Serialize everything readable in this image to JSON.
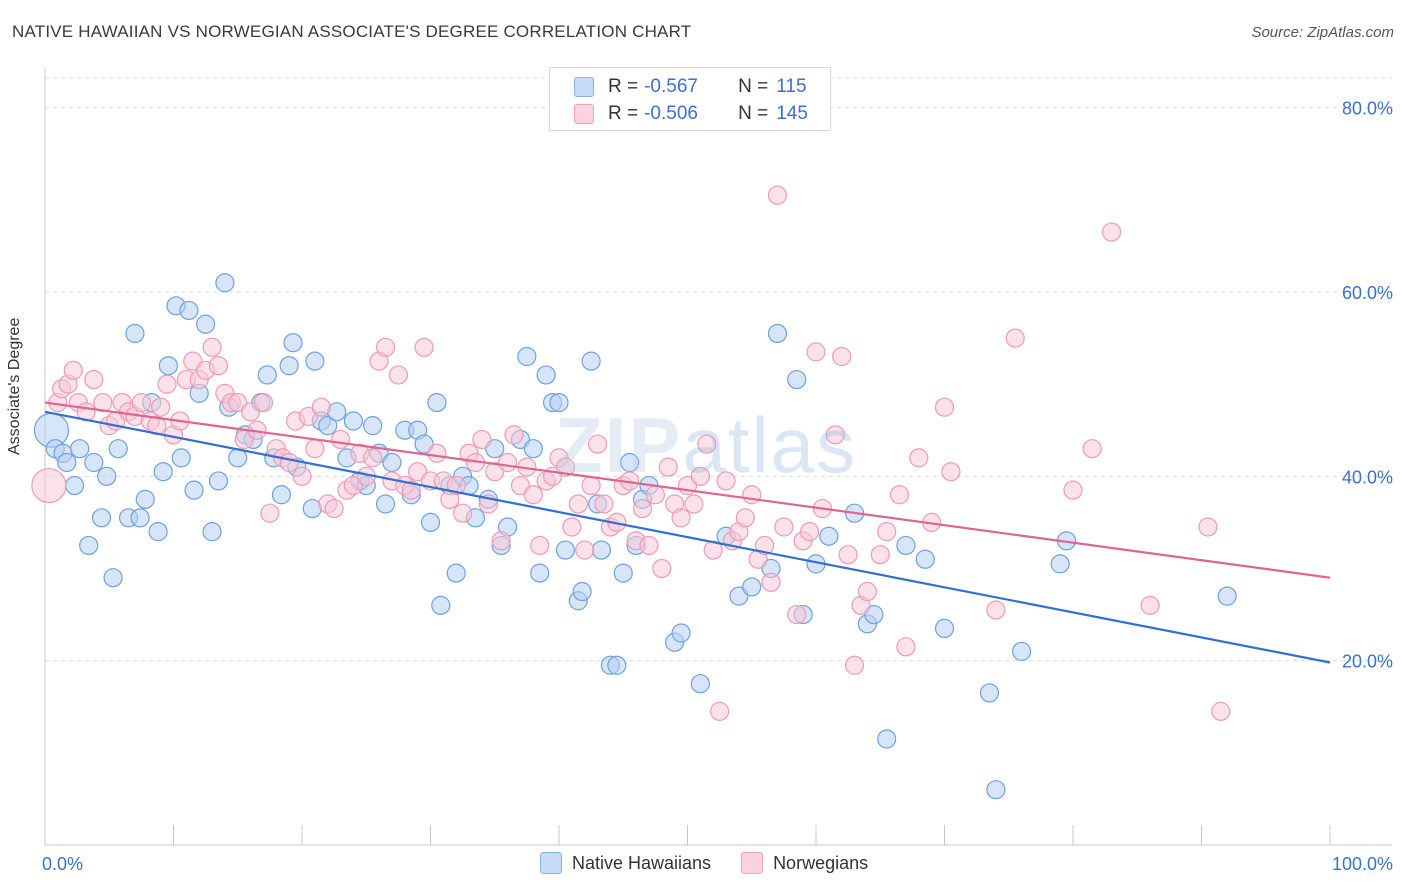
{
  "title": "NATIVE HAWAIIAN VS NORWEGIAN ASSOCIATE'S DEGREE CORRELATION CHART",
  "source": "Source: ZipAtlas.com",
  "watermark": {
    "left": "ZIP",
    "right": "atlas"
  },
  "legend": {
    "rows": [
      {
        "r_label": "R =",
        "r_value": "-0.567",
        "n_label": "N =",
        "n_value": "115",
        "color": "#a9c8ef"
      },
      {
        "r_label": "R =",
        "r_value": "-0.506",
        "n_label": "N =",
        "n_value": "145",
        "color": "#f5b8cb"
      }
    ]
  },
  "bottom_legend": [
    {
      "label": "Native Hawaiians",
      "color": "#a9c8ef"
    },
    {
      "label": "Norwegians",
      "color": "#f5b8cb"
    }
  ],
  "chart_data": {
    "type": "scatter",
    "title": "NATIVE HAWAIIAN VS NORWEGIAN ASSOCIATE'S DEGREE CORRELATION CHART",
    "xlabel": "",
    "ylabel": "Associate's Degree",
    "xlim": [
      0,
      100
    ],
    "ylim": [
      0,
      83
    ],
    "x_ticks": [
      "0.0%",
      "100.0%"
    ],
    "y_ticks": [
      {
        "value": 20,
        "label": "20.0%"
      },
      {
        "value": 40,
        "label": "40.0%"
      },
      {
        "value": 60,
        "label": "60.0%"
      },
      {
        "value": 80,
        "label": "80.0%"
      }
    ],
    "grid": true,
    "legend_position": "top-center",
    "series": [
      {
        "name": "Native Hawaiians",
        "color": "#6fa0e0",
        "fill": "#b7d0f2",
        "trend": {
          "x": [
            0,
            100
          ],
          "y": [
            47.0,
            19.8
          ],
          "color": "#2f6fd6"
        },
        "points": [
          [
            0.5,
            45
          ],
          [
            0.8,
            43
          ],
          [
            1.4,
            42.5
          ],
          [
            1.7,
            41.5
          ],
          [
            2.3,
            39
          ],
          [
            2.7,
            43
          ],
          [
            3.4,
            32.5
          ],
          [
            3.8,
            41.5
          ],
          [
            4.4,
            35.5
          ],
          [
            4.8,
            40
          ],
          [
            5.3,
            29
          ],
          [
            5.7,
            43
          ],
          [
            6.5,
            35.5
          ],
          [
            7.0,
            55.5
          ],
          [
            7.4,
            35.5
          ],
          [
            7.8,
            37.5
          ],
          [
            8.3,
            48
          ],
          [
            8.8,
            34
          ],
          [
            9.2,
            40.5
          ],
          [
            9.6,
            52
          ],
          [
            10.2,
            58.5
          ],
          [
            10.6,
            42
          ],
          [
            11.2,
            58
          ],
          [
            11.6,
            38.5
          ],
          [
            12.0,
            49
          ],
          [
            12.5,
            56.5
          ],
          [
            13.0,
            34
          ],
          [
            13.5,
            39.5
          ],
          [
            14.0,
            61
          ],
          [
            14.3,
            47.5
          ],
          [
            15.0,
            42
          ],
          [
            15.6,
            44.5
          ],
          [
            16.2,
            44
          ],
          [
            16.8,
            48
          ],
          [
            17.3,
            51
          ],
          [
            17.8,
            42
          ],
          [
            18.4,
            38
          ],
          [
            19.0,
            52
          ],
          [
            19.3,
            54.5
          ],
          [
            19.6,
            41
          ],
          [
            20.8,
            36.5
          ],
          [
            21.0,
            52.5
          ],
          [
            21.5,
            46
          ],
          [
            22.0,
            45.5
          ],
          [
            22.7,
            47
          ],
          [
            23.5,
            42
          ],
          [
            24.0,
            46
          ],
          [
            24.5,
            39.5
          ],
          [
            25.0,
            39
          ],
          [
            25.5,
            45.5
          ],
          [
            26.0,
            42.5
          ],
          [
            26.5,
            37
          ],
          [
            27.0,
            41.5
          ],
          [
            28.0,
            45
          ],
          [
            28.5,
            38
          ],
          [
            29.0,
            45
          ],
          [
            29.5,
            43.5
          ],
          [
            30.0,
            35
          ],
          [
            30.5,
            48
          ],
          [
            30.8,
            26
          ],
          [
            31.5,
            39
          ],
          [
            32.0,
            29.5
          ],
          [
            32.5,
            40
          ],
          [
            33.0,
            39
          ],
          [
            33.5,
            35.5
          ],
          [
            34.5,
            37.5
          ],
          [
            35.0,
            43
          ],
          [
            35.5,
            32.5
          ],
          [
            36.0,
            34.5
          ],
          [
            37.0,
            44
          ],
          [
            37.5,
            53
          ],
          [
            38.0,
            43
          ],
          [
            38.5,
            29.5
          ],
          [
            39.0,
            51
          ],
          [
            39.5,
            48
          ],
          [
            40.0,
            48
          ],
          [
            40.5,
            32
          ],
          [
            41.5,
            26.5
          ],
          [
            41.8,
            27.5
          ],
          [
            42.5,
            52.5
          ],
          [
            43.0,
            37
          ],
          [
            43.3,
            32
          ],
          [
            44.0,
            19.5
          ],
          [
            44.5,
            19.5
          ],
          [
            45.0,
            29.5
          ],
          [
            45.5,
            41.5
          ],
          [
            46.0,
            32.5
          ],
          [
            46.5,
            37.5
          ],
          [
            47.0,
            39
          ],
          [
            49.0,
            22
          ],
          [
            49.5,
            23
          ],
          [
            51.0,
            17.5
          ],
          [
            53.0,
            33.5
          ],
          [
            54.0,
            27
          ],
          [
            55.0,
            28
          ],
          [
            56.5,
            30
          ],
          [
            57.0,
            55.5
          ],
          [
            58.5,
            50.5
          ],
          [
            59.0,
            25
          ],
          [
            60.0,
            30.5
          ],
          [
            61.0,
            33.5
          ],
          [
            63.0,
            36
          ],
          [
            64.0,
            24
          ],
          [
            64.5,
            25
          ],
          [
            65.5,
            11.5
          ],
          [
            67.0,
            32.5
          ],
          [
            68.5,
            31
          ],
          [
            70.0,
            23.5
          ],
          [
            73.5,
            16.5
          ],
          [
            74.0,
            6
          ],
          [
            76.0,
            21
          ],
          [
            79.0,
            30.5
          ],
          [
            79.5,
            33
          ],
          [
            92.0,
            27
          ]
        ]
      },
      {
        "name": "Norwegians",
        "color": "#ef9ab5",
        "fill": "#f8c9d7",
        "trend": {
          "x": [
            0,
            100
          ],
          "y": [
            48.0,
            29.0
          ],
          "color": "#e0648e"
        },
        "points": [
          [
            0.3,
            39
          ],
          [
            1.0,
            48
          ],
          [
            1.3,
            49.5
          ],
          [
            1.8,
            50
          ],
          [
            2.2,
            51.5
          ],
          [
            2.6,
            48
          ],
          [
            3.2,
            47
          ],
          [
            3.8,
            50.5
          ],
          [
            4.5,
            48
          ],
          [
            5.0,
            45.5
          ],
          [
            5.5,
            46
          ],
          [
            6.0,
            48
          ],
          [
            6.5,
            47
          ],
          [
            7.0,
            46.5
          ],
          [
            7.5,
            48
          ],
          [
            8.2,
            46
          ],
          [
            8.7,
            45.5
          ],
          [
            9.0,
            47.5
          ],
          [
            9.5,
            50
          ],
          [
            10.0,
            44.5
          ],
          [
            10.5,
            46
          ],
          [
            11.0,
            50.5
          ],
          [
            11.5,
            52.5
          ],
          [
            12.0,
            50.5
          ],
          [
            12.5,
            51.5
          ],
          [
            13.0,
            54
          ],
          [
            13.5,
            52
          ],
          [
            14.0,
            49
          ],
          [
            14.5,
            48
          ],
          [
            15.0,
            48
          ],
          [
            15.5,
            44
          ],
          [
            16.0,
            47
          ],
          [
            16.5,
            45
          ],
          [
            17.0,
            48
          ],
          [
            17.5,
            36
          ],
          [
            18.0,
            43
          ],
          [
            18.5,
            42
          ],
          [
            19.0,
            41.5
          ],
          [
            19.5,
            46
          ],
          [
            20.0,
            40
          ],
          [
            20.5,
            46.5
          ],
          [
            21.0,
            43
          ],
          [
            21.5,
            47.5
          ],
          [
            22.0,
            37
          ],
          [
            22.5,
            36.5
          ],
          [
            23.0,
            44
          ],
          [
            23.5,
            38.5
          ],
          [
            24.0,
            39
          ],
          [
            24.5,
            42.5
          ],
          [
            25.0,
            40
          ],
          [
            25.5,
            42
          ],
          [
            26.0,
            52.5
          ],
          [
            26.5,
            54
          ],
          [
            27.0,
            39.5
          ],
          [
            27.5,
            51
          ],
          [
            28.0,
            39
          ],
          [
            28.5,
            38.5
          ],
          [
            29.0,
            40.5
          ],
          [
            29.5,
            54
          ],
          [
            30.0,
            39.5
          ],
          [
            30.5,
            42.5
          ],
          [
            31.0,
            39.5
          ],
          [
            31.5,
            37.5
          ],
          [
            32.0,
            39
          ],
          [
            32.5,
            36
          ],
          [
            33.0,
            42.5
          ],
          [
            33.5,
            41.5
          ],
          [
            34.0,
            44
          ],
          [
            34.5,
            37
          ],
          [
            35.0,
            40.5
          ],
          [
            35.5,
            33
          ],
          [
            36.0,
            41.5
          ],
          [
            36.5,
            44.5
          ],
          [
            37.0,
            39
          ],
          [
            37.5,
            41
          ],
          [
            38.0,
            38
          ],
          [
            38.5,
            32.5
          ],
          [
            39.0,
            39.5
          ],
          [
            39.5,
            40
          ],
          [
            40.0,
            42
          ],
          [
            40.5,
            41
          ],
          [
            41.0,
            34.5
          ],
          [
            41.5,
            37
          ],
          [
            42.0,
            32
          ],
          [
            42.5,
            39
          ],
          [
            43.0,
            43.5
          ],
          [
            43.5,
            37
          ],
          [
            44.0,
            34.5
          ],
          [
            44.5,
            35
          ],
          [
            45.0,
            39
          ],
          [
            45.5,
            39.5
          ],
          [
            46.0,
            33
          ],
          [
            46.5,
            36.5
          ],
          [
            47.0,
            32.5
          ],
          [
            47.5,
            38
          ],
          [
            48.0,
            30
          ],
          [
            48.5,
            41
          ],
          [
            49.0,
            37
          ],
          [
            49.5,
            35.5
          ],
          [
            50.0,
            39
          ],
          [
            50.5,
            37
          ],
          [
            51.0,
            40
          ],
          [
            51.5,
            43.5
          ],
          [
            52.0,
            32
          ],
          [
            52.5,
            14.5
          ],
          [
            53.0,
            39.5
          ],
          [
            53.5,
            33
          ],
          [
            54.0,
            34
          ],
          [
            54.5,
            35.5
          ],
          [
            55.0,
            38
          ],
          [
            55.5,
            31
          ],
          [
            56.0,
            32.5
          ],
          [
            56.5,
            28.5
          ],
          [
            57.0,
            70.5
          ],
          [
            57.5,
            34.5
          ],
          [
            58.5,
            25
          ],
          [
            59.0,
            33
          ],
          [
            59.5,
            34
          ],
          [
            60.0,
            53.5
          ],
          [
            60.5,
            36.5
          ],
          [
            61.5,
            44.5
          ],
          [
            62.0,
            53
          ],
          [
            62.5,
            31.5
          ],
          [
            63.0,
            19.5
          ],
          [
            63.5,
            26
          ],
          [
            64.0,
            27.5
          ],
          [
            65.0,
            31.5
          ],
          [
            65.5,
            34
          ],
          [
            66.5,
            38
          ],
          [
            67.0,
            21.5
          ],
          [
            68.0,
            42
          ],
          [
            69.0,
            35
          ],
          [
            70.0,
            47.5
          ],
          [
            70.5,
            40.5
          ],
          [
            74.0,
            25.5
          ],
          [
            75.5,
            55
          ],
          [
            80.0,
            38.5
          ],
          [
            81.5,
            43
          ],
          [
            83.0,
            66.5
          ],
          [
            86.0,
            26
          ],
          [
            90.5,
            34.5
          ],
          [
            91.5,
            14.5
          ]
        ]
      }
    ]
  }
}
